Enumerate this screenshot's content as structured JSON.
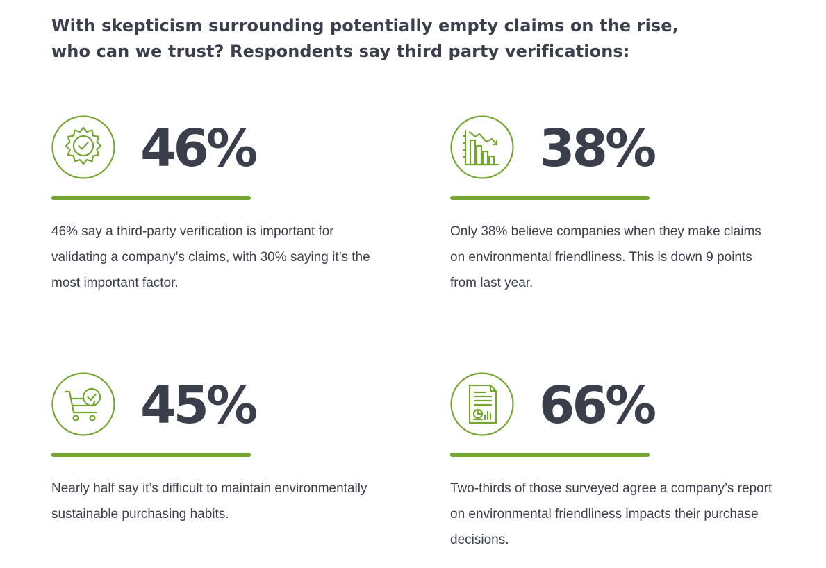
{
  "headline": "With skepticism surrounding potentially empty claims on the rise, who can we trust? Respondents say third party verifications:",
  "colors": {
    "accent": "#75a531",
    "text": "#3a3f4b"
  },
  "stats": [
    {
      "icon": "verified-badge-icon",
      "value": "46%",
      "description": "46% say a third-party verification is important for validating a company’s claims, with 30% saying it’s the most important factor."
    },
    {
      "icon": "declining-chart-icon",
      "value": "38%",
      "description": "Only 38% believe companies when they make claims on environmental friendliness. This is down 9 points from last year."
    },
    {
      "icon": "shopping-cart-check-icon",
      "value": "45%",
      "description": "Nearly half say it’s difficult to maintain environmentally sustainable purchasing habits."
    },
    {
      "icon": "report-document-icon",
      "value": "66%",
      "description": "Two-thirds of those surveyed agree a company’s report on environmental friendliness impacts their purchase decisions."
    }
  ]
}
